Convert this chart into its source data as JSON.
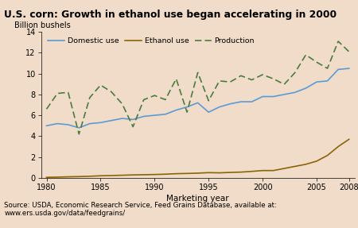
{
  "title": "U.S. corn: Growth in ethanol use began accelerating in 2000",
  "ylabel": "Billion bushels",
  "xlabel": "Marketing year",
  "source_text": "Source: USDA, Economic Research Service, Feed Grains Database, available at:\nwww.ers.usda.gov/data/feedgrains/",
  "fig_bg_color": "#f0dcc8",
  "plot_bg_color": "#f0dcc8",
  "years": [
    1980,
    1981,
    1982,
    1983,
    1984,
    1985,
    1986,
    1987,
    1988,
    1989,
    1990,
    1991,
    1992,
    1993,
    1994,
    1995,
    1996,
    1997,
    1998,
    1999,
    2000,
    2001,
    2002,
    2003,
    2004,
    2005,
    2006,
    2007,
    2008
  ],
  "domestic_use": [
    5.0,
    5.2,
    5.1,
    4.8,
    5.2,
    5.3,
    5.5,
    5.7,
    5.6,
    5.9,
    6.0,
    6.1,
    6.5,
    6.8,
    7.2,
    6.3,
    6.8,
    7.1,
    7.3,
    7.3,
    7.8,
    7.8,
    8.0,
    8.2,
    8.6,
    9.2,
    9.3,
    10.4,
    10.5
  ],
  "ethanol_use": [
    0.05,
    0.07,
    0.1,
    0.12,
    0.15,
    0.2,
    0.22,
    0.25,
    0.28,
    0.3,
    0.32,
    0.35,
    0.4,
    0.42,
    0.45,
    0.5,
    0.48,
    0.52,
    0.55,
    0.62,
    0.7,
    0.7,
    0.9,
    1.1,
    1.3,
    1.6,
    2.15,
    3.0,
    3.7
  ],
  "production": [
    6.6,
    8.1,
    8.2,
    4.2,
    7.7,
    8.9,
    8.25,
    7.1,
    4.9,
    7.5,
    7.9,
    7.5,
    9.5,
    6.3,
    10.1,
    7.4,
    9.3,
    9.2,
    9.8,
    9.4,
    9.9,
    9.5,
    8.97,
    10.1,
    11.8,
    11.1,
    10.5,
    13.1,
    12.1
  ],
  "ylim": [
    0,
    14
  ],
  "xlim": [
    1979.5,
    2008.5
  ],
  "yticks": [
    0,
    2,
    4,
    6,
    8,
    10,
    12,
    14
  ],
  "xticks": [
    1980,
    1985,
    1990,
    1995,
    2000,
    2005,
    2008
  ],
  "domestic_color": "#5b9bd5",
  "ethanol_color": "#8B6508",
  "production_color": "#4a7c3f",
  "legend_labels": [
    "Domestic use",
    "Ethanol use",
    "Production"
  ]
}
